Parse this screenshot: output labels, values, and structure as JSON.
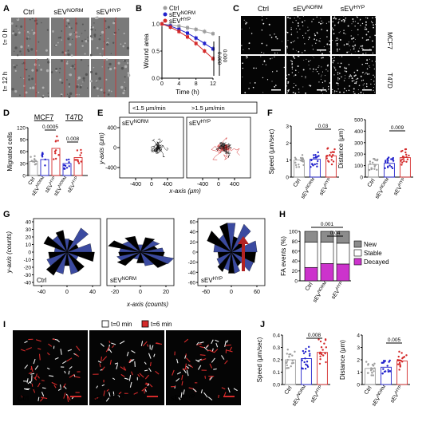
{
  "panels": {
    "A": {
      "letter": "A",
      "col_labels": [
        "Ctrl",
        "sEV",
        "sEV"
      ],
      "col_sups": [
        "",
        "NORM",
        "HYP"
      ],
      "row_labels": [
        "t= 0 h",
        "t= 12 h"
      ]
    },
    "B": {
      "letter": "B",
      "legend": [
        {
          "base": "Ctrl",
          "sup": "",
          "color": "#9e9e9e"
        },
        {
          "base": "sEV",
          "sup": "NORM",
          "color": "#2222cc"
        },
        {
          "base": "sEV",
          "sup": "HYP",
          "color": "#d42a2a"
        }
      ],
      "pvals": [
        "0.000",
        "0.000"
      ]
    },
    "C": {
      "letter": "C",
      "col_labels": [
        "Ctrl",
        "sEV",
        "sEV"
      ],
      "col_sups": [
        "",
        "NORM",
        "HYP"
      ],
      "row_labels": [
        "MCF7",
        "T47D"
      ]
    },
    "D": {
      "letter": "D",
      "group_labels": [
        "MCF7",
        "T47D"
      ],
      "pvals": [
        "0.0005",
        "0.008"
      ],
      "tick_labels": [
        {
          "base": "Ctrl",
          "sup": ""
        },
        {
          "base": "sEV",
          "sup": "NORM"
        },
        {
          "base": "sEV",
          "sup": "HYP"
        },
        {
          "base": "sEV",
          "sup": "NORM"
        },
        {
          "base": "sEV",
          "sup": "HYP"
        }
      ]
    },
    "E": {
      "letter": "E",
      "legend_black": "<1.5 μm/min",
      "legend_red": ">1.5 μm/min",
      "plot_labels": [
        {
          "base": "sEV",
          "sup": "NORM"
        },
        {
          "base": "sEV",
          "sup": "HYP"
        }
      ]
    },
    "F": {
      "letter": "F",
      "pvals": [
        "0.03",
        "0.009"
      ],
      "x_labels": [
        {
          "base": "Ctrl",
          "sup": ""
        },
        {
          "base": "sEV",
          "sup": "NORM"
        },
        {
          "base": "sEV",
          "sup": "HYP"
        }
      ]
    },
    "G": {
      "letter": "G",
      "plot_labels": [
        {
          "base": "Ctrl",
          "sup": ""
        },
        {
          "base": "sEV",
          "sup": "NORM"
        },
        {
          "base": "sEV",
          "sup": "HYP"
        }
      ]
    },
    "H": {
      "letter": "H",
      "pvals": [
        "0.001",
        "0.04"
      ],
      "x_labels": [
        {
          "base": "Ctrl",
          "sup": ""
        },
        {
          "base": "sEV",
          "sup": "NORM"
        },
        {
          "base": "sEV",
          "sup": "HYP"
        }
      ]
    },
    "I": {
      "letter": "I",
      "legend": [
        {
          "label": "t=0 min",
          "color": "#ffffff"
        },
        {
          "label": "t=6 min",
          "color": "#d42a2a"
        }
      ],
      "labels": [
        {
          "base": "Ctrl",
          "sup": ""
        },
        {
          "base": "sEV",
          "sup": "NORM"
        },
        {
          "base": "sEV",
          "sup": "HYP"
        }
      ]
    },
    "J": {
      "letter": "J",
      "pvals": [
        "0.008",
        "0.005"
      ],
      "x_labels": [
        {
          "base": "Ctrl",
          "sup": ""
        },
        {
          "base": "sEV",
          "sup": "NORM"
        },
        {
          "base": "sEV",
          "sup": "HYP"
        }
      ]
    }
  },
  "colors": {
    "ctrl": "#9e9e9e",
    "norm": "#2222cc",
    "hyp": "#d42a2a",
    "new": "#8c8c8c",
    "stable": "#ffffff",
    "decayed": "#cc33cc",
    "rose": "#3b4aa0",
    "arrow": "#b22222"
  },
  "chart_data": [
    {
      "type": "line",
      "panel": "B",
      "xlabel": "Time (h)",
      "ylabel": "Wound area",
      "x": [
        0,
        2,
        4,
        6,
        8,
        10,
        12
      ],
      "xlim": [
        0,
        12
      ],
      "ylim": [
        0,
        1
      ],
      "x_ticks": [
        "0",
        "4",
        "8",
        "12"
      ],
      "y_ticks": [
        "0.0",
        "0.5",
        "1.0"
      ],
      "series": [
        {
          "name": "Ctrl",
          "values": [
            1.0,
            0.98,
            0.96,
            0.93,
            0.9,
            0.86,
            0.82
          ]
        },
        {
          "name": "sEVNORM",
          "values": [
            1.0,
            0.96,
            0.9,
            0.83,
            0.74,
            0.64,
            0.54
          ]
        },
        {
          "name": "sEVHYP",
          "values": [
            1.0,
            0.94,
            0.86,
            0.76,
            0.64,
            0.5,
            0.36
          ]
        }
      ]
    },
    {
      "type": "bar",
      "panel": "D",
      "ylabel": "Migrated cells",
      "ylim": [
        0,
        120
      ],
      "y_ticks": [
        "0",
        "30",
        "60",
        "90",
        "120"
      ],
      "categories": [
        "Ctrl",
        "sEVNORM (MCF7)",
        "sEVHYP (MCF7)",
        "sEVNORM (T47D)",
        "sEVHYP (T47D)"
      ],
      "values": [
        35,
        40,
        68,
        30,
        45
      ]
    },
    {
      "type": "scatter",
      "panel": "E",
      "xlabel": "x-axis (μm)",
      "ylabel": "y-axis (μm)",
      "x_ticks": [
        "-400",
        "0",
        "400",
        "-400",
        "0",
        "400"
      ],
      "y_ticks": [
        "400",
        "0",
        "-400"
      ]
    },
    {
      "type": "bar",
      "panel": "F-speed",
      "ylabel": "Speed (μm/sec)",
      "ylim": [
        0,
        3
      ],
      "y_ticks": [
        "0",
        "1",
        "2",
        "3"
      ],
      "categories": [
        "Ctrl",
        "sEVNORM",
        "sEVHYP"
      ],
      "values": [
        1.0,
        1.05,
        1.25
      ]
    },
    {
      "type": "bar",
      "panel": "F-distance",
      "ylabel": "Distance (μm)",
      "ylim": [
        0,
        500
      ],
      "y_ticks": [
        "0",
        "100",
        "200",
        "300",
        "400",
        "500"
      ],
      "categories": [
        "Ctrl",
        "sEVNORM",
        "sEVHYP"
      ],
      "values": [
        110,
        120,
        170
      ]
    },
    {
      "type": "other",
      "panel": "G",
      "xlabel": "x-axis (counts)",
      "ylabel": "y-axis (counts)",
      "plots": [
        {
          "x_ticks": [
            "-40",
            "0",
            "40"
          ],
          "y_ticks": [
            "40",
            "30",
            "20",
            "10",
            "0",
            "-10",
            "-20",
            "-30",
            "-40"
          ]
        },
        {
          "x_ticks": [
            "-20",
            "0",
            "20"
          ],
          "y_ticks": []
        },
        {
          "x_ticks": [
            "-60",
            "0",
            "60"
          ],
          "y_ticks": [
            "60",
            "40",
            "20",
            "0",
            "-20",
            "-40",
            "-60"
          ]
        }
      ]
    },
    {
      "type": "bar",
      "panel": "H",
      "ylabel": "FA events (%)",
      "ylim": [
        0,
        100
      ],
      "y_ticks": [
        "0",
        "20",
        "40",
        "60",
        "80",
        "100"
      ],
      "categories": [
        "Ctrl",
        "sEVNORM",
        "sEVHYP"
      ],
      "series": [
        {
          "name": "Decayed",
          "values": [
            27,
            35,
            34
          ]
        },
        {
          "name": "Stable",
          "values": [
            51,
            43,
            42
          ]
        },
        {
          "name": "New",
          "values": [
            22,
            22,
            24
          ]
        }
      ]
    },
    {
      "type": "bar",
      "panel": "J-speed",
      "ylabel": "Speed (μm/sec)",
      "ylim": [
        0,
        0.4
      ],
      "y_ticks": [
        "0.0",
        "0.1",
        "0.2",
        "0.3",
        "0.4"
      ],
      "categories": [
        "Ctrl",
        "sEVNORM",
        "sEVHYP"
      ],
      "values": [
        0.2,
        0.21,
        0.26
      ]
    },
    {
      "type": "bar",
      "panel": "J-distance",
      "ylabel": "Distance (μm)",
      "ylim": [
        0,
        4
      ],
      "y_ticks": [
        "0",
        "1",
        "2",
        "3",
        "4"
      ],
      "categories": [
        "Ctrl",
        "sEVNORM",
        "sEVHYP"
      ],
      "values": [
        1.3,
        1.4,
        1.9
      ]
    }
  ]
}
